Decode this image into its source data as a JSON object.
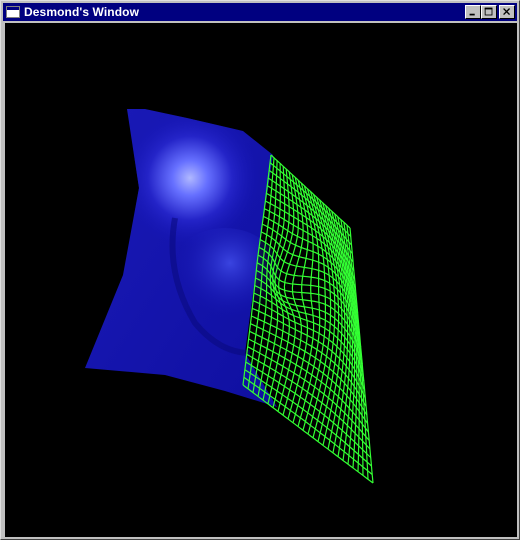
{
  "window": {
    "title": "Desmond's Window",
    "icon": "app-window-icon",
    "buttons": [
      {
        "name": "minimize-button",
        "icon": "minimize-icon"
      },
      {
        "name": "maximize-button",
        "icon": "maximize-icon"
      },
      {
        "name": "close-button",
        "icon": "close-icon"
      }
    ]
  },
  "scene": {
    "background_color": "#000000",
    "solid_surface_color": "#1414b4",
    "highlight_color": "#a8b0ff",
    "wireframe_color": "#33ff33"
  }
}
